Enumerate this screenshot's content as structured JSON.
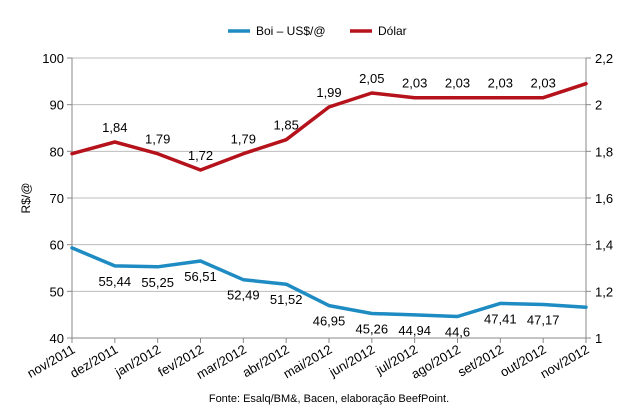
{
  "chart_data": {
    "type": "line",
    "categories": [
      "nov/2011",
      "dez/2011",
      "jan/2012",
      "fev/2012",
      "mar/2012",
      "abr/2012",
      "mai/2012",
      "jun/2012",
      "jul/2012",
      "ago/2012",
      "set/2012",
      "out/2012",
      "nov/2012"
    ],
    "series": [
      {
        "name": "Boi – US$/@",
        "axis": "left",
        "color": "#1e8bc3",
        "values": [
          59.3,
          55.44,
          55.25,
          56.51,
          52.49,
          51.52,
          46.95,
          45.26,
          44.94,
          44.6,
          47.41,
          47.17,
          46.6
        ],
        "labels": [
          "",
          "55,44",
          "55,25",
          "56,51",
          "52,49",
          "51,52",
          "46,95",
          "45,26",
          "44,94",
          "44,6",
          "47,41",
          "47,17",
          ""
        ]
      },
      {
        "name": "Dólar",
        "axis": "right",
        "color": "#b5121b",
        "values": [
          1.79,
          1.84,
          1.79,
          1.72,
          1.79,
          1.85,
          1.99,
          2.05,
          2.03,
          2.03,
          2.03,
          2.03,
          2.09
        ],
        "labels": [
          "",
          "1,84",
          "1,79",
          "1,72",
          "1,79",
          "1,85",
          "1,99",
          "2,05",
          "2,03",
          "2,03",
          "2,03",
          "2,03",
          ""
        ]
      }
    ],
    "ylabel": "R$/@",
    "ylim": [
      40,
      100
    ],
    "yticks": [
      "40",
      "50",
      "60",
      "70",
      "80",
      "90",
      "100"
    ],
    "y2lim": [
      1,
      2.2
    ],
    "y2ticks": [
      "1",
      "1,2",
      "1,4",
      "1,6",
      "1,8",
      "2",
      "2,2"
    ],
    "grid": true,
    "legend": "top-center",
    "source": "Fonte: Esalq/BM&, Bacen, elaboração BeefPoint."
  }
}
